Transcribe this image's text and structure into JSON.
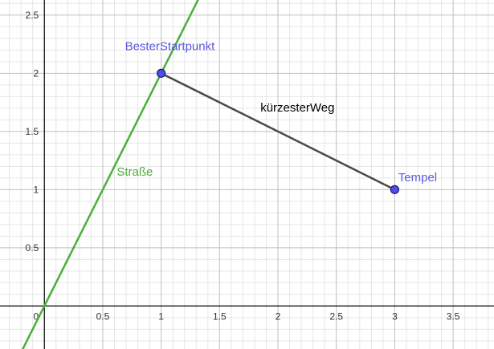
{
  "view": {
    "xlim": [
      -0.38,
      3.85
    ],
    "ylim": [
      -0.37,
      2.63
    ],
    "grid": true,
    "minor_grid": true,
    "axis_color": "#000000",
    "major_grid_color": "#c0c0c0",
    "minor_grid_color": "#e6e6e6",
    "background": "#ffffff"
  },
  "axes": {
    "x_ticks": [
      {
        "value": 0.5,
        "label": "0.5"
      },
      {
        "value": 1,
        "label": "1"
      },
      {
        "value": 1.5,
        "label": "1.5"
      },
      {
        "value": 2,
        "label": "2"
      },
      {
        "value": 2.5,
        "label": "2.5"
      },
      {
        "value": 3,
        "label": "3"
      },
      {
        "value": 3.5,
        "label": "3.5"
      }
    ],
    "y_ticks": [
      {
        "value": 0.5,
        "label": "0.5"
      },
      {
        "value": 1,
        "label": "1"
      },
      {
        "value": 1.5,
        "label": "1.5"
      },
      {
        "value": 2,
        "label": "2"
      },
      {
        "value": 2.5,
        "label": "2.5"
      }
    ],
    "origin_label": "0"
  },
  "objects": {
    "strasse": {
      "label": "Straße",
      "slope": 2,
      "intercept": 0,
      "color": "#4cad3c",
      "label_at": {
        "x": 0.62,
        "y": 1.12
      }
    },
    "weg": {
      "label": "kürzesterWeg",
      "from": {
        "x": 1,
        "y": 2
      },
      "to": {
        "x": 3,
        "y": 1
      },
      "color": "#494949",
      "label_at": {
        "x": 1.85,
        "y": 1.67
      }
    },
    "start": {
      "label": "BesterStartpunkt",
      "x": 1,
      "y": 2,
      "color": "#4d4df0",
      "label_color": "#5a58e0",
      "label_at": {
        "x": 0.69,
        "y": 2.2
      }
    },
    "tempel": {
      "label": "Tempel",
      "x": 3,
      "y": 1,
      "color": "#4d4df0",
      "label_color": "#5a58e0",
      "label_at": {
        "x": 3.03,
        "y": 1.07
      }
    }
  }
}
